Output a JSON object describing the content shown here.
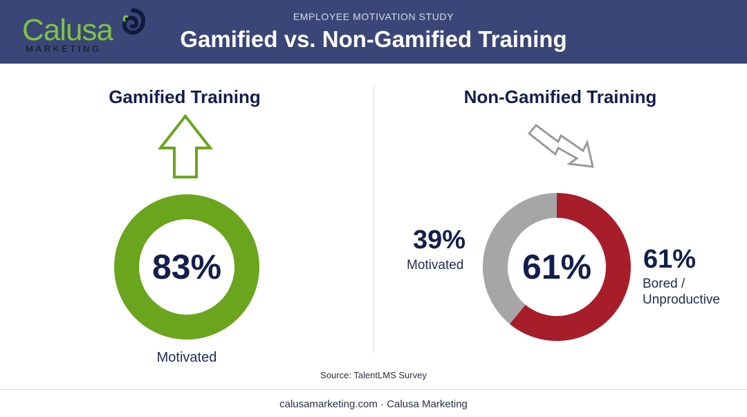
{
  "header": {
    "eyebrow": "EMPLOYEE MOTIVATION STUDY",
    "title": "Gamified vs. Non-Gamified Training",
    "logo": {
      "name": "Calusa",
      "tagline": "MARKETING"
    }
  },
  "colors": {
    "header_bg": "#3a4677",
    "green": "#6aa51d",
    "red": "#a71d2a",
    "gray": "#a6a6a6",
    "navy": "#141e4e"
  },
  "icons": {
    "gamified": "arrow-up-outline-icon",
    "non_gamified": "zigzag-arrow-down-icon"
  },
  "chart_data": [
    {
      "type": "pie",
      "title": "Gamified Training",
      "center_label": "83%",
      "slices": [
        {
          "label": "Motivated",
          "value": 83,
          "color": "#6aa51d"
        },
        {
          "label": "",
          "value": 17,
          "color": "#6aa51d"
        }
      ],
      "caption": "Motivated"
    },
    {
      "type": "pie",
      "title": "Non-Gamified Training",
      "center_label": "61%",
      "slices": [
        {
          "label": "Bored / Unproductive",
          "value": 61,
          "display": "61%",
          "color": "#a71d2a"
        },
        {
          "label": "Motivated",
          "value": 39,
          "display": "39%",
          "color": "#a6a6a6"
        }
      ]
    }
  ],
  "source": "Source: TalentLMS Survey",
  "footer": "calusamarketing.com · Calusa Marketing"
}
